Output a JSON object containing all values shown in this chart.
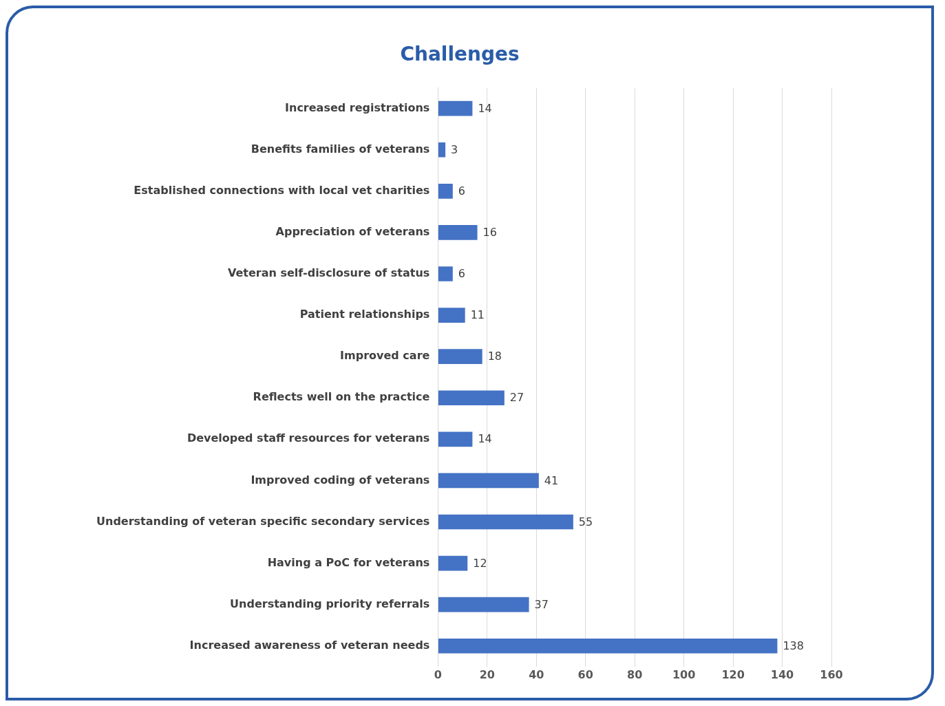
{
  "chart_data": {
    "type": "bar",
    "orientation": "horizontal",
    "title": "Challenges",
    "categories": [
      "Increased registrations",
      "Benefits families of veterans",
      "Established connections with local vet charities",
      "Appreciation of veterans",
      "Veteran self-disclosure of status",
      "Patient relationships",
      "Improved care",
      "Reflects well on the practice",
      "Developed staff resources for veterans",
      "Improved coding of veterans",
      "Understanding of veteran specific secondary services",
      "Having a PoC for veterans",
      "Understanding priority referrals",
      "Increased awareness of veteran needs"
    ],
    "values": [
      14,
      3,
      6,
      16,
      6,
      11,
      18,
      27,
      14,
      41,
      55,
      12,
      37,
      138
    ],
    "color": "#4472c4",
    "xlim": [
      0,
      160
    ],
    "xticks": [
      0,
      20,
      40,
      60,
      80,
      100,
      120,
      140,
      160
    ],
    "grid": "x",
    "data_labels": true,
    "legend": false
  }
}
